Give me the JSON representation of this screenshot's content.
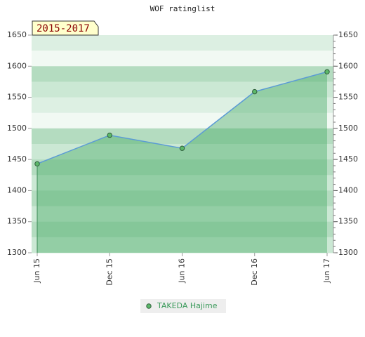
{
  "chart_data": {
    "type": "line",
    "title": "WOF ratinglist",
    "annotation": "2015-2017",
    "categories": [
      "Jun 15",
      "Dec 15",
      "Jun 16",
      "Dec 16",
      "Jun 17"
    ],
    "series": [
      {
        "name": "TAKEDA Hajime",
        "color": "#5b9bd5",
        "values": [
          1443,
          1489,
          1468,
          1559,
          1591
        ]
      }
    ],
    "ylim": [
      1300,
      1650
    ],
    "yticks": [
      1300,
      1350,
      1400,
      1450,
      1500,
      1550,
      1600,
      1650
    ],
    "y2lim": [
      1300,
      1650
    ],
    "y2ticks": [
      1300,
      1350,
      1400,
      1450,
      1500,
      1550,
      1600,
      1650
    ],
    "legend": "bottom"
  }
}
